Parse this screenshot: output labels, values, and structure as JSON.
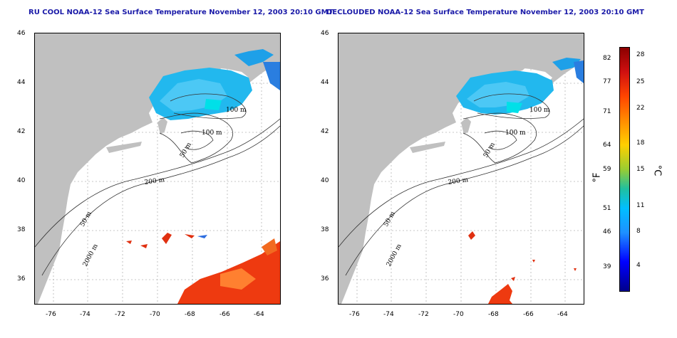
{
  "panels": [
    {
      "title": "RU COOL NOAA-12 Sea Surface Temperature November 12, 2003 20:10 GMT"
    },
    {
      "title": "DECLOUDED NOAA-12 Sea Surface Temperature November 12, 2003 20:10 GMT"
    }
  ],
  "lat_ticks": [
    "46",
    "44",
    "42",
    "40",
    "38",
    "36"
  ],
  "lon_ticks": [
    "-76",
    "-74",
    "-72",
    "-70",
    "-68",
    "-66",
    "-64"
  ],
  "contour_labels": {
    "c100a": "100 m",
    "c100b": "100 m",
    "c50": "50 m",
    "c200": "200 m",
    "c50b": "50 m",
    "c2000": "2000 m"
  },
  "colorbar": {
    "fahrenheit": [
      "82",
      "77",
      "71",
      "64",
      "59",
      "51",
      "46",
      "39"
    ],
    "celsius": [
      "28",
      "25",
      "22",
      "18",
      "15",
      "11",
      "8",
      "4"
    ],
    "f_unit": "°F",
    "c_unit": "°C"
  },
  "colors": {
    "land": "#c0c0c0",
    "title": "#1a1aa8",
    "grid": "#b5b5b5"
  }
}
